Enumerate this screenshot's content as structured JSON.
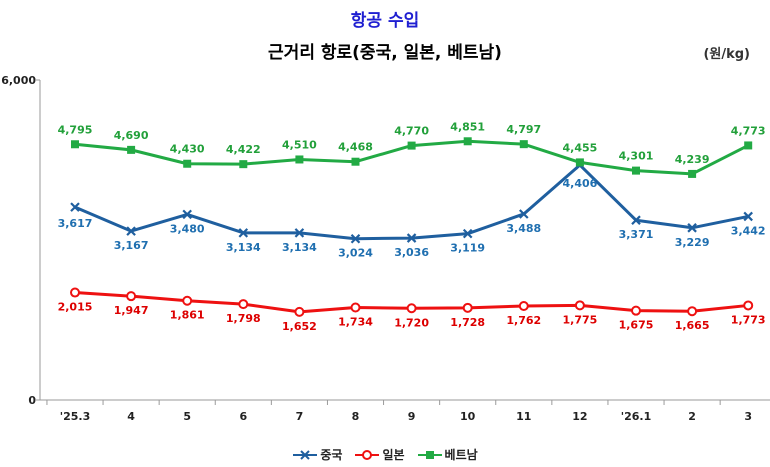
{
  "chart_data": {
    "type": "line",
    "supertitle": "항공 수입",
    "title": "근거리 항로(중국, 일본, 베트남)",
    "unit": "(원/kg)",
    "categories": [
      "'25.3",
      "4",
      "5",
      "6",
      "7",
      "8",
      "9",
      "10",
      "11",
      "12",
      "'26.1",
      "2",
      "3"
    ],
    "ylim": [
      0,
      6000
    ],
    "yticks": [
      "0",
      "6,000"
    ],
    "series": [
      {
        "name": "중국",
        "marker": "x",
        "color": "#1f5f9f",
        "label_color": "#1f6fb0",
        "values": [
          3617,
          3167,
          3480,
          3134,
          3134,
          3024,
          3036,
          3119,
          3488,
          4406,
          3371,
          3229,
          3442
        ],
        "labels": [
          "3,617",
          "3,167",
          "3,480",
          "3,134",
          "3,134",
          "3,024",
          "3,036",
          "3,119",
          "3,488",
          "4,406",
          "3,371",
          "3,229",
          "3,442"
        ]
      },
      {
        "name": "일본",
        "marker": "circle",
        "color": "#ee1111",
        "label_color": "#dd0000",
        "values": [
          2015,
          1947,
          1861,
          1798,
          1652,
          1734,
          1720,
          1728,
          1762,
          1775,
          1675,
          1665,
          1773
        ],
        "labels": [
          "2,015",
          "1,947",
          "1,861",
          "1,798",
          "1,652",
          "1,734",
          "1,720",
          "1,728",
          "1,762",
          "1,775",
          "1,675",
          "1,665",
          "1,773"
        ]
      },
      {
        "name": "베트남",
        "marker": "square",
        "color": "#22aa44",
        "label_color": "#22a03a",
        "values": [
          4795,
          4690,
          4430,
          4422,
          4510,
          4468,
          4770,
          4851,
          4797,
          4455,
          4301,
          4239,
          4773
        ],
        "labels": [
          "4,795",
          "4,690",
          "4,430",
          "4,422",
          "4,510",
          "4,468",
          "4,770",
          "4,851",
          "4,797",
          "4,455",
          "4,301",
          "4,239",
          "4,773"
        ]
      }
    ]
  }
}
